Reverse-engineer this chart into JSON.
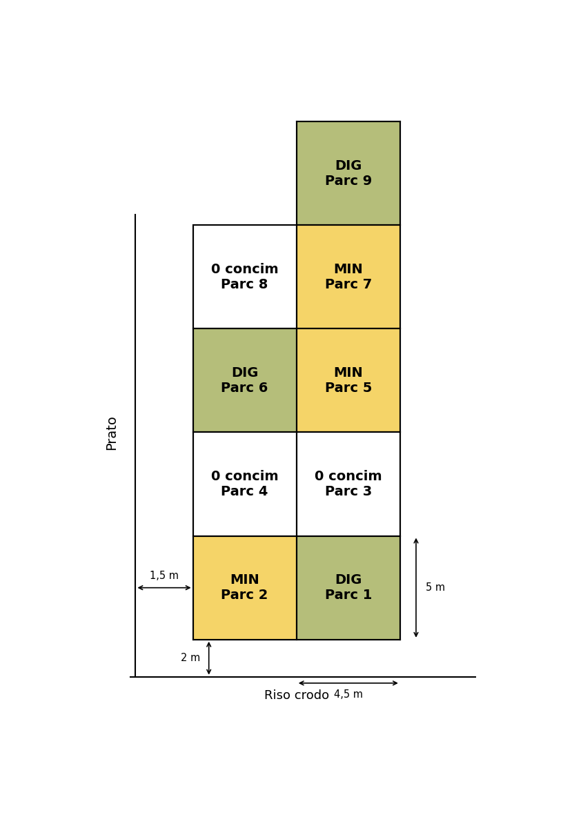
{
  "title_bottom": "Riso crodo",
  "title_left": "Prato",
  "color_DIG": "#b5be7a",
  "color_MIN": "#f5d468",
  "color_zero": "#ffffff",
  "cells": [
    {
      "label": "DIG\nParc 9",
      "col": 1,
      "row": 4,
      "color": "DIG"
    },
    {
      "label": "0 concim\nParc 8",
      "col": 0,
      "row": 3,
      "color": "zero"
    },
    {
      "label": "MIN\nParc 7",
      "col": 1,
      "row": 3,
      "color": "MIN"
    },
    {
      "label": "DIG\nParc 6",
      "col": 0,
      "row": 2,
      "color": "DIG"
    },
    {
      "label": "MIN\nParc 5",
      "col": 1,
      "row": 2,
      "color": "MIN"
    },
    {
      "label": "0 concim\nParc 4",
      "col": 0,
      "row": 1,
      "color": "zero"
    },
    {
      "label": "0 concim\nParc 3",
      "col": 1,
      "row": 1,
      "color": "zero"
    },
    {
      "label": "MIN\nParc 2",
      "col": 0,
      "row": 0,
      "color": "MIN"
    },
    {
      "label": "DIG\nParc 1",
      "col": 1,
      "row": 0,
      "color": "DIG"
    }
  ],
  "annotation_1_5m": "1,5 m",
  "annotation_2m": "2 m",
  "annotation_4_5m": "4,5 m",
  "annotation_5m": "5 m",
  "font_size_cell": 14,
  "font_size_annot": 10.5
}
